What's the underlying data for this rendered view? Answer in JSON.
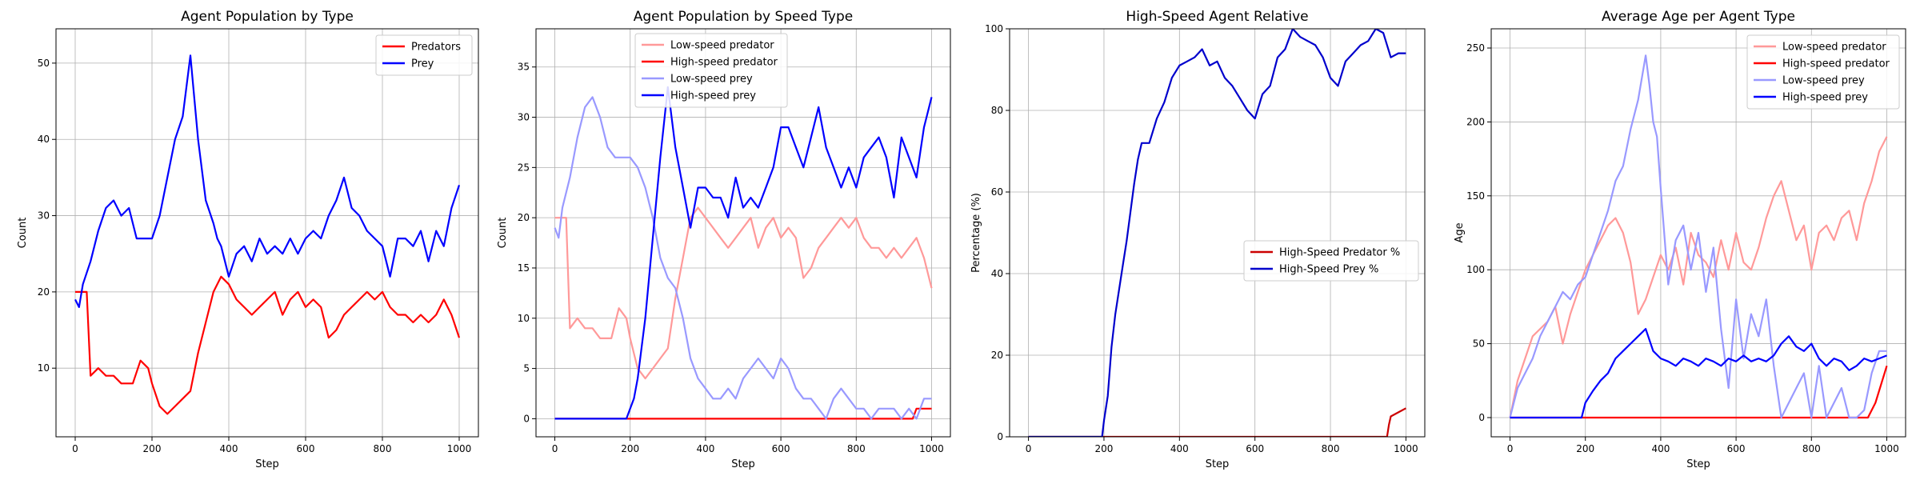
{
  "chart_data": [
    {
      "type": "line",
      "title": "Agent Population by Type",
      "xlabel": "Step",
      "ylabel": "Count",
      "xlim": [
        -50,
        1050
      ],
      "ylim": [
        1,
        54.5
      ],
      "xticks": [
        0,
        200,
        400,
        600,
        800,
        1000
      ],
      "yticks": [
        10,
        20,
        30,
        40,
        50
      ],
      "grid": true,
      "legend": "top-right",
      "series": [
        {
          "name": "Predators",
          "color": "#ff0000",
          "x": [
            0,
            30,
            40,
            60,
            80,
            100,
            120,
            150,
            170,
            190,
            200,
            220,
            240,
            260,
            280,
            300,
            320,
            340,
            360,
            380,
            400,
            420,
            440,
            460,
            480,
            500,
            520,
            540,
            560,
            580,
            600,
            620,
            640,
            660,
            680,
            700,
            720,
            740,
            760,
            780,
            800,
            820,
            840,
            860,
            880,
            900,
            920,
            940,
            960,
            980,
            1000
          ],
          "values": [
            20,
            20,
            9,
            10,
            9,
            9,
            8,
            8,
            11,
            10,
            8,
            5,
            4,
            5,
            6,
            7,
            12,
            16,
            20,
            22,
            21,
            19,
            18,
            17,
            18,
            19,
            20,
            17,
            19,
            20,
            18,
            19,
            18,
            14,
            15,
            17,
            18,
            19,
            20,
            19,
            20,
            18,
            17,
            17,
            16,
            17,
            16,
            17,
            19,
            17,
            14
          ]
        },
        {
          "name": "Prey",
          "color": "#0000ff",
          "x": [
            0,
            10,
            20,
            40,
            60,
            80,
            100,
            120,
            140,
            160,
            180,
            200,
            220,
            240,
            260,
            280,
            300,
            320,
            340,
            360,
            370,
            380,
            400,
            420,
            440,
            460,
            480,
            500,
            520,
            540,
            560,
            580,
            600,
            620,
            640,
            660,
            680,
            700,
            720,
            740,
            760,
            780,
            800,
            820,
            840,
            860,
            880,
            900,
            920,
            940,
            960,
            980,
            1000
          ],
          "values": [
            19,
            18,
            21,
            24,
            28,
            31,
            32,
            30,
            31,
            27,
            27,
            27,
            30,
            35,
            40,
            43,
            51,
            40,
            32,
            29,
            27,
            26,
            22,
            25,
            26,
            24,
            27,
            25,
            26,
            25,
            27,
            25,
            27,
            28,
            27,
            30,
            32,
            35,
            31,
            30,
            28,
            27,
            26,
            22,
            27,
            27,
            26,
            28,
            24,
            28,
            26,
            31,
            34
          ]
        }
      ]
    },
    {
      "type": "line",
      "title": "Agent Population by Speed Type",
      "xlabel": "Step",
      "ylabel": "Count",
      "xlim": [
        -50,
        1050
      ],
      "ylim": [
        -1.8,
        38.8
      ],
      "xticks": [
        0,
        200,
        400,
        600,
        800,
        1000
      ],
      "yticks": [
        0,
        5,
        10,
        15,
        20,
        25,
        30,
        35
      ],
      "grid": true,
      "legend": "top-center",
      "series": [
        {
          "name": "Low-speed predator",
          "color": "#ff9999",
          "x": [
            0,
            30,
            40,
            60,
            80,
            100,
            120,
            150,
            170,
            190,
            200,
            220,
            240,
            260,
            280,
            300,
            320,
            340,
            360,
            380,
            400,
            420,
            440,
            460,
            480,
            500,
            520,
            540,
            560,
            580,
            600,
            620,
            640,
            660,
            680,
            700,
            720,
            740,
            760,
            780,
            800,
            820,
            840,
            860,
            880,
            900,
            920,
            940,
            960,
            980,
            1000
          ],
          "values": [
            20,
            20,
            9,
            10,
            9,
            9,
            8,
            8,
            11,
            10,
            8,
            5,
            4,
            5,
            6,
            7,
            12,
            16,
            20,
            21,
            20,
            19,
            18,
            17,
            18,
            19,
            20,
            17,
            19,
            20,
            18,
            19,
            18,
            14,
            15,
            17,
            18,
            19,
            20,
            19,
            20,
            18,
            17,
            17,
            16,
            17,
            16,
            17,
            18,
            16,
            13
          ]
        },
        {
          "name": "High-speed predator",
          "color": "#ff0000",
          "x": [
            0,
            950,
            960,
            980,
            1000
          ],
          "values": [
            0,
            0,
            1,
            1,
            1
          ]
        },
        {
          "name": "Low-speed prey",
          "color": "#9999ff",
          "x": [
            0,
            10,
            20,
            40,
            60,
            80,
            100,
            120,
            140,
            160,
            180,
            200,
            220,
            240,
            260,
            280,
            300,
            320,
            340,
            360,
            380,
            400,
            420,
            440,
            460,
            480,
            500,
            520,
            540,
            560,
            580,
            600,
            620,
            640,
            660,
            680,
            700,
            720,
            740,
            760,
            780,
            800,
            820,
            840,
            860,
            880,
            900,
            920,
            940,
            960,
            980,
            1000
          ],
          "values": [
            19,
            18,
            21,
            24,
            28,
            31,
            32,
            30,
            27,
            26,
            26,
            26,
            25,
            23,
            20,
            16,
            14,
            13,
            10,
            6,
            4,
            3,
            2,
            2,
            3,
            2,
            4,
            5,
            6,
            5,
            4,
            6,
            5,
            3,
            2,
            2,
            1,
            0,
            2,
            3,
            2,
            1,
            1,
            0,
            1,
            1,
            1,
            0,
            1,
            0,
            2,
            2
          ]
        },
        {
          "name": "High-speed prey",
          "color": "#0000ff",
          "x": [
            0,
            190,
            200,
            210,
            220,
            240,
            260,
            280,
            300,
            320,
            340,
            360,
            380,
            400,
            420,
            440,
            460,
            480,
            500,
            520,
            540,
            560,
            580,
            600,
            620,
            640,
            660,
            680,
            700,
            720,
            740,
            760,
            780,
            800,
            820,
            840,
            860,
            880,
            900,
            920,
            940,
            960,
            980,
            1000
          ],
          "values": [
            0,
            0,
            1,
            2,
            4,
            10,
            18,
            26,
            33,
            27,
            23,
            19,
            23,
            23,
            22,
            22,
            20,
            24,
            21,
            22,
            21,
            23,
            25,
            29,
            29,
            27,
            25,
            28,
            31,
            27,
            25,
            23,
            25,
            23,
            26,
            27,
            28,
            26,
            22,
            28,
            26,
            24,
            29,
            32
          ]
        }
      ]
    },
    {
      "type": "line",
      "title": "High-Speed Agent Relative",
      "xlabel": "Step",
      "ylabel": "Percentage (%)",
      "xlim": [
        -50,
        1050
      ],
      "ylim": [
        0,
        100
      ],
      "xticks": [
        0,
        200,
        400,
        600,
        800,
        1000
      ],
      "yticks": [
        0,
        20,
        40,
        60,
        80,
        100
      ],
      "grid": true,
      "legend": "center-right",
      "series": [
        {
          "name": "High-Speed Predator %",
          "color": "#cc0000",
          "x": [
            0,
            950,
            955,
            960,
            980,
            1000
          ],
          "values": [
            0,
            0,
            3,
            5,
            6,
            7
          ]
        },
        {
          "name": "High-Speed Prey %",
          "color": "#0000cc",
          "x": [
            0,
            195,
            200,
            210,
            220,
            230,
            240,
            250,
            260,
            270,
            280,
            290,
            300,
            320,
            340,
            360,
            380,
            400,
            420,
            440,
            460,
            480,
            500,
            520,
            540,
            560,
            580,
            600,
            620,
            640,
            660,
            680,
            700,
            720,
            740,
            760,
            780,
            800,
            820,
            840,
            860,
            880,
            900,
            920,
            940,
            960,
            980,
            1000
          ],
          "values": [
            0,
            0,
            4,
            10,
            22,
            30,
            36,
            42,
            48,
            55,
            62,
            68,
            72,
            72,
            78,
            82,
            88,
            91,
            92,
            93,
            95,
            91,
            92,
            88,
            86,
            83,
            80,
            78,
            84,
            86,
            93,
            95,
            100,
            98,
            97,
            96,
            93,
            88,
            86,
            92,
            94,
            96,
            97,
            100,
            99,
            93,
            94,
            94
          ]
        }
      ]
    },
    {
      "type": "line",
      "title": "Average Age per Agent Type",
      "xlabel": "Step",
      "ylabel": "Age",
      "xlim": [
        -50,
        1050
      ],
      "ylim": [
        -13,
        263
      ],
      "xticks": [
        0,
        200,
        400,
        600,
        800,
        1000
      ],
      "yticks": [
        0,
        50,
        100,
        150,
        200,
        250
      ],
      "grid": true,
      "legend": "top-right",
      "series": [
        {
          "name": "Low-speed predator",
          "color": "#ff9999",
          "x": [
            0,
            20,
            40,
            60,
            80,
            100,
            120,
            140,
            160,
            180,
            200,
            220,
            240,
            260,
            280,
            300,
            320,
            340,
            360,
            380,
            400,
            420,
            440,
            460,
            480,
            500,
            520,
            540,
            560,
            580,
            600,
            620,
            640,
            660,
            680,
            700,
            720,
            740,
            760,
            780,
            800,
            820,
            840,
            860,
            880,
            900,
            920,
            940,
            960,
            980,
            1000
          ],
          "values": [
            0,
            25,
            40,
            55,
            60,
            65,
            75,
            50,
            70,
            85,
            100,
            110,
            120,
            130,
            135,
            125,
            105,
            70,
            80,
            95,
            110,
            100,
            115,
            90,
            125,
            110,
            105,
            95,
            120,
            100,
            125,
            105,
            100,
            115,
            135,
            150,
            160,
            140,
            120,
            130,
            100,
            125,
            130,
            120,
            135,
            140,
            120,
            145,
            160,
            180,
            190
          ]
        },
        {
          "name": "High-speed predator",
          "color": "#ff0000",
          "x": [
            0,
            950,
            970,
            1000
          ],
          "values": [
            0,
            0,
            10,
            35
          ]
        },
        {
          "name": "Low-speed prey",
          "color": "#9999ff",
          "x": [
            0,
            20,
            40,
            60,
            80,
            100,
            120,
            140,
            160,
            180,
            200,
            220,
            240,
            260,
            280,
            300,
            320,
            340,
            360,
            370,
            380,
            390,
            400,
            420,
            440,
            460,
            480,
            500,
            520,
            540,
            560,
            580,
            600,
            620,
            640,
            660,
            680,
            700,
            720,
            740,
            760,
            780,
            800,
            820,
            840,
            860,
            880,
            900,
            920,
            940,
            960,
            980,
            1000
          ],
          "values": [
            0,
            20,
            30,
            40,
            55,
            65,
            75,
            85,
            80,
            90,
            95,
            110,
            125,
            140,
            160,
            170,
            195,
            215,
            245,
            225,
            200,
            190,
            155,
            90,
            120,
            130,
            100,
            125,
            85,
            115,
            60,
            20,
            80,
            40,
            70,
            55,
            80,
            35,
            0,
            10,
            20,
            30,
            0,
            35,
            0,
            10,
            20,
            0,
            0,
            5,
            30,
            45,
            45
          ]
        },
        {
          "name": "High-speed prey",
          "color": "#0000ff",
          "x": [
            0,
            190,
            200,
            220,
            240,
            260,
            280,
            300,
            320,
            340,
            360,
            380,
            400,
            420,
            440,
            460,
            480,
            500,
            520,
            540,
            560,
            580,
            600,
            620,
            640,
            660,
            680,
            700,
            720,
            740,
            760,
            780,
            800,
            820,
            840,
            860,
            880,
            900,
            920,
            940,
            960,
            980,
            1000
          ],
          "values": [
            0,
            0,
            10,
            18,
            25,
            30,
            40,
            45,
            50,
            55,
            60,
            45,
            40,
            38,
            35,
            40,
            38,
            35,
            40,
            38,
            35,
            40,
            38,
            42,
            38,
            40,
            38,
            42,
            50,
            55,
            48,
            45,
            50,
            40,
            35,
            40,
            38,
            32,
            35,
            40,
            38,
            40,
            42
          ]
        }
      ]
    }
  ]
}
